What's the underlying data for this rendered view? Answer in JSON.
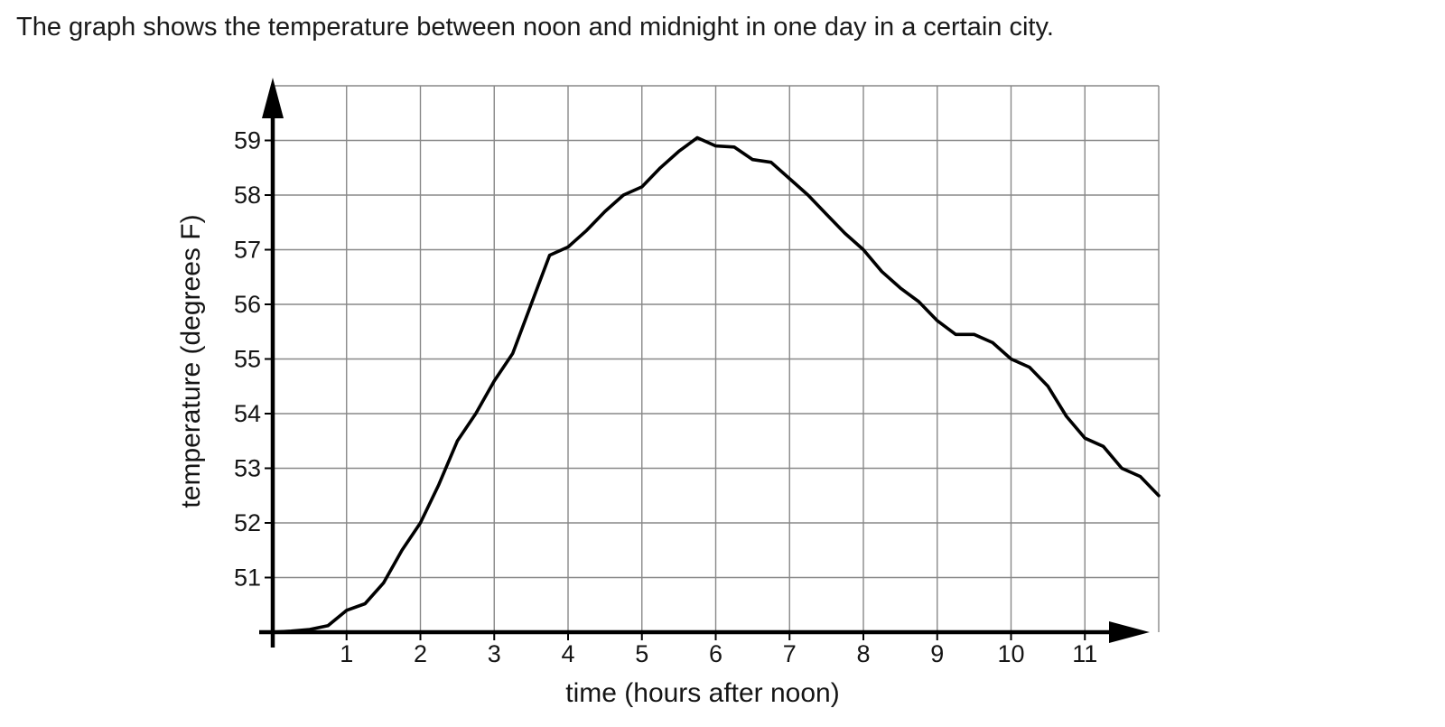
{
  "page": {
    "title": "The graph shows the temperature between noon and midnight in one day in a certain city."
  },
  "chart_data": {
    "type": "line",
    "title": "The graph shows the temperature between noon and midnight in one day in a certain city.",
    "xlabel": "time (hours after noon)",
    "ylabel": "temperature (degrees F)",
    "xlim": [
      0,
      12
    ],
    "ylim": [
      50,
      60
    ],
    "x_ticks": [
      1,
      2,
      3,
      4,
      5,
      6,
      7,
      8,
      9,
      10,
      11
    ],
    "y_ticks": [
      51,
      52,
      53,
      54,
      55,
      56,
      57,
      58,
      59
    ],
    "grid": true,
    "legend": false,
    "line_color": "#000000",
    "grid_color": "#888888",
    "axis_color": "#000000",
    "series": [
      {
        "name": "temperature",
        "points": [
          [
            0,
            50.0
          ],
          [
            0.25,
            50.02
          ],
          [
            0.5,
            50.05
          ],
          [
            0.75,
            50.12
          ],
          [
            1,
            50.4
          ],
          [
            1.25,
            50.52
          ],
          [
            1.5,
            50.9
          ],
          [
            1.75,
            51.5
          ],
          [
            2,
            52.0
          ],
          [
            2.25,
            52.7
          ],
          [
            2.5,
            53.5
          ],
          [
            2.75,
            54.0
          ],
          [
            3,
            54.6
          ],
          [
            3.25,
            55.1
          ],
          [
            3.5,
            56.0
          ],
          [
            3.75,
            56.9
          ],
          [
            4,
            57.05
          ],
          [
            4.25,
            57.35
          ],
          [
            4.5,
            57.7
          ],
          [
            4.75,
            58.0
          ],
          [
            5,
            58.15
          ],
          [
            5.25,
            58.5
          ],
          [
            5.5,
            58.8
          ],
          [
            5.75,
            59.05
          ],
          [
            6,
            58.9
          ],
          [
            6.25,
            58.88
          ],
          [
            6.5,
            58.65
          ],
          [
            6.75,
            58.6
          ],
          [
            7,
            58.3
          ],
          [
            7.25,
            58.0
          ],
          [
            7.5,
            57.65
          ],
          [
            7.75,
            57.3
          ],
          [
            8,
            57.0
          ],
          [
            8.25,
            56.6
          ],
          [
            8.5,
            56.3
          ],
          [
            8.75,
            56.05
          ],
          [
            9,
            55.7
          ],
          [
            9.25,
            55.45
          ],
          [
            9.5,
            55.45
          ],
          [
            9.75,
            55.3
          ],
          [
            10,
            55.0
          ],
          [
            10.25,
            54.85
          ],
          [
            10.5,
            54.5
          ],
          [
            10.75,
            53.95
          ],
          [
            11,
            53.55
          ],
          [
            11.25,
            53.4
          ],
          [
            11.5,
            53.0
          ],
          [
            11.75,
            52.85
          ],
          [
            12,
            52.5
          ]
        ]
      }
    ]
  }
}
